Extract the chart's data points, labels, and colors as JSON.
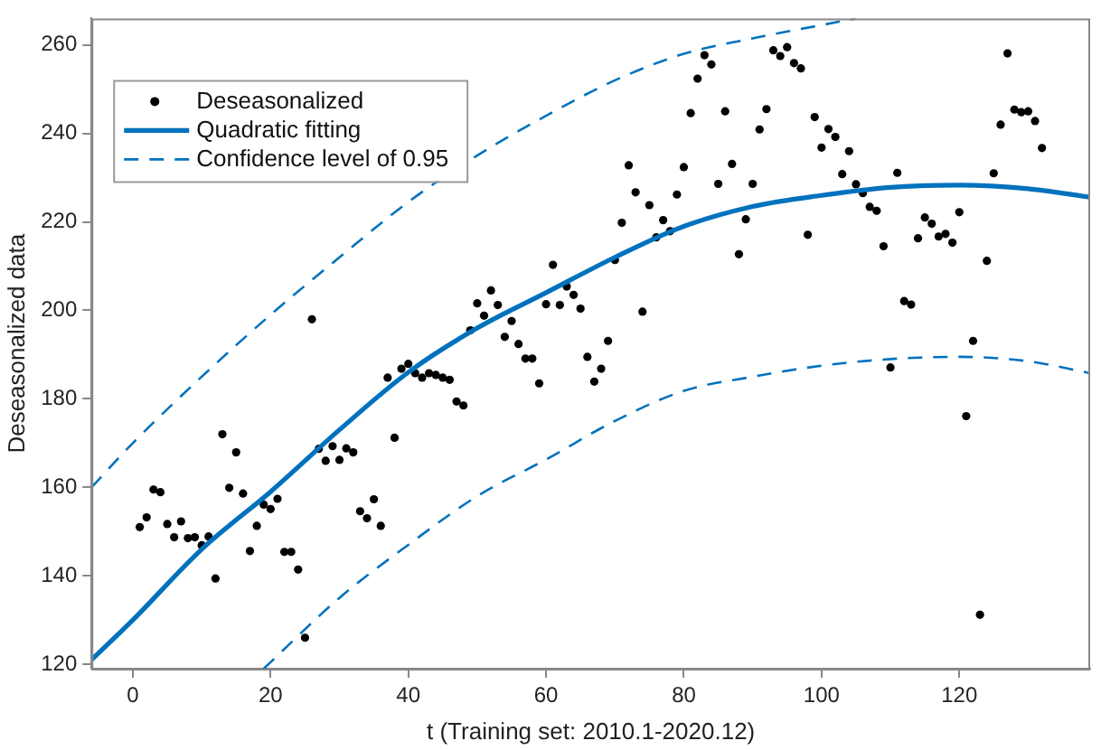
{
  "chart_data": {
    "type": "scatter",
    "xlabel": "t (Training set: 2010.1-2020.12)",
    "ylabel": "Deseasonalized data",
    "xlim": [
      -6,
      139
    ],
    "xticks": [
      0,
      20,
      40,
      60,
      80,
      100,
      120
    ],
    "ylim": [
      119,
      266
    ],
    "yticks": [
      120,
      140,
      160,
      180,
      200,
      220,
      240,
      260
    ],
    "grid": false,
    "legend": "top left",
    "marker": "circle",
    "series": [
      {
        "name": "Deseasonalized",
        "color": "#000000",
        "x": [
          1,
          2,
          3,
          4,
          5,
          6,
          7,
          8,
          9,
          10,
          11,
          12,
          13,
          14,
          15,
          16,
          17,
          18,
          19,
          20,
          21,
          22,
          23,
          24,
          25,
          26,
          27,
          28,
          29,
          30,
          31,
          32,
          33,
          34,
          35,
          36,
          37,
          38,
          39,
          40,
          41,
          42,
          43,
          44,
          45,
          46,
          47,
          48,
          49,
          50,
          51,
          52,
          53,
          54,
          55,
          56,
          57,
          58,
          59,
          60,
          61,
          62,
          63,
          64,
          65,
          66,
          67,
          68,
          69,
          70,
          71,
          72,
          73,
          74,
          75,
          76,
          77,
          78,
          79,
          80,
          81,
          82,
          83,
          84,
          85,
          86,
          87,
          88,
          89,
          90,
          91,
          92,
          93,
          94,
          95,
          96,
          97,
          98,
          99,
          100,
          101,
          102,
          103,
          104,
          105,
          106,
          107,
          108,
          109,
          110,
          111,
          112,
          113,
          114,
          115,
          116,
          117,
          118,
          119,
          120,
          121,
          122,
          123,
          124,
          125,
          126,
          127,
          128,
          129,
          130,
          131,
          132
        ],
        "values": [
          151.0,
          153.2,
          159.5,
          158.9,
          151.7,
          148.7,
          152.3,
          148.5,
          148.7,
          146.9,
          148.9,
          139.4,
          172.0,
          159.9,
          167.9,
          158.6,
          145.6,
          151.3,
          156.1,
          155.1,
          157.4,
          145.4,
          145.4,
          141.4,
          126.0,
          198.0,
          168.7,
          166.0,
          169.3,
          166.2,
          168.8,
          167.9,
          154.6,
          153.0,
          157.3,
          151.3,
          184.8,
          171.2,
          186.8,
          187.9,
          185.8,
          184.8,
          185.8,
          185.4,
          184.8,
          184.3,
          179.4,
          178.5,
          195.5,
          201.6,
          198.8,
          204.5,
          201.2,
          194.0,
          197.6,
          192.4,
          189.1,
          189.1,
          183.5,
          201.4,
          210.3,
          201.2,
          205.4,
          203.5,
          200.4,
          189.5,
          183.9,
          186.8,
          193.1,
          211.4,
          219.8,
          232.8,
          226.7,
          199.7,
          223.8,
          216.5,
          220.4,
          217.9,
          226.2,
          232.4,
          244.6,
          252.4,
          257.7,
          255.6,
          228.6,
          245.0,
          233.1,
          212.7,
          220.6,
          228.6,
          240.9,
          245.5,
          258.8,
          257.5,
          259.5,
          255.9,
          254.7,
          217.1,
          243.7,
          236.8,
          241.0,
          239.2,
          230.8,
          236.0,
          228.5,
          226.5,
          223.4,
          222.5,
          214.5,
          187.1,
          231.1,
          202.1,
          201.3,
          216.3,
          221.0,
          219.6,
          216.7,
          217.3,
          215.3,
          222.2,
          176.1,
          193.1,
          131.2,
          211.2,
          231.0,
          242.0,
          258.1,
          245.4,
          244.8,
          245.0,
          242.8,
          236.7
        ]
      },
      {
        "name": "Quadratic fitting",
        "type": "line",
        "marker": "none",
        "color": "#0072bd",
        "x": [
          -6,
          0,
          10,
          20,
          30,
          40,
          50,
          60,
          70,
          80,
          90,
          100,
          110,
          120,
          130,
          139
        ],
        "values": [
          121,
          130,
          146,
          159,
          173,
          186,
          196,
          204,
          212,
          219,
          223.5,
          226,
          227.8,
          228.3,
          227.5,
          225.6
        ]
      },
      {
        "name": "Confidence level of 0.95",
        "type": "line",
        "marker": "none",
        "line_style": "dashed",
        "color": "#0072bd",
        "x": [
          -6,
          0,
          10,
          20,
          30,
          40,
          50,
          60,
          70,
          80,
          90,
          100,
          105
        ],
        "values": [
          160,
          170,
          185,
          199,
          212,
          224.5,
          235,
          244,
          252,
          258,
          261.5,
          264.5,
          266
        ]
      },
      {
        "type": "line",
        "marker": "none",
        "line_style": "dashed",
        "color": "#0072bd",
        "x": [
          19,
          30,
          40,
          50,
          60,
          70,
          80,
          90,
          100,
          110,
          120,
          130,
          139
        ],
        "values": [
          119,
          135,
          147,
          158,
          166.3,
          175,
          181.8,
          185,
          187.5,
          189,
          189.5,
          188.5,
          185.8
        ]
      }
    ]
  }
}
